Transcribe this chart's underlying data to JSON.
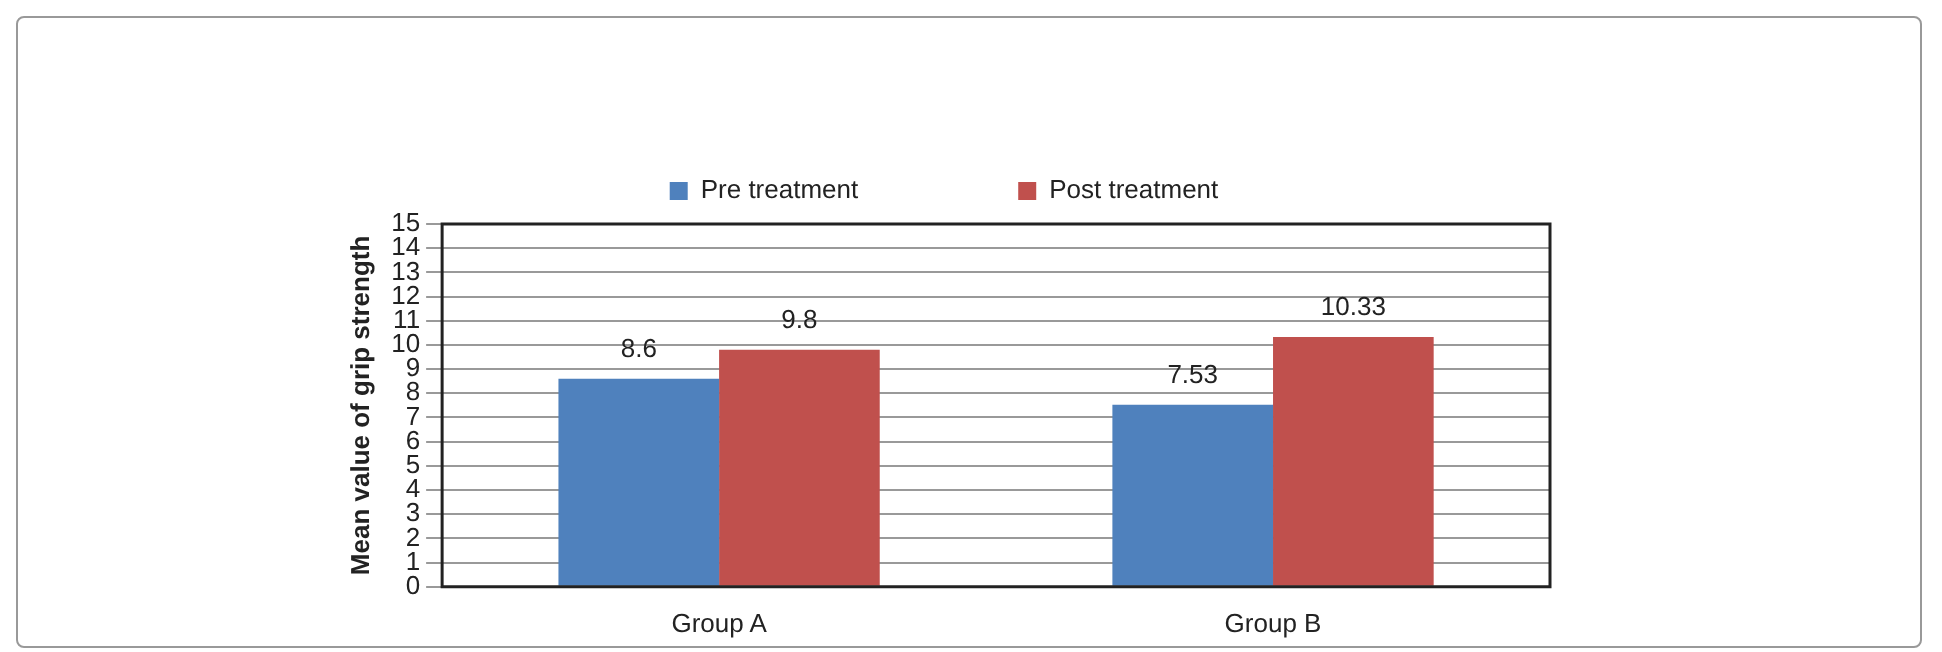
{
  "chart_data": {
    "type": "bar",
    "ylabel": "Mean value of grip strength",
    "categories": [
      "Group A",
      "Group B"
    ],
    "series": [
      {
        "name": "Pre treatment",
        "color": "#4f81bd",
        "values": [
          8.6,
          7.53
        ]
      },
      {
        "name": "Post treatment",
        "color": "#c0504d",
        "values": [
          9.8,
          10.33
        ]
      }
    ],
    "ylim": [
      0,
      15
    ],
    "yticks": [
      0,
      1,
      2,
      3,
      4,
      5,
      6,
      7,
      8,
      9,
      10,
      11,
      12,
      13,
      14,
      15
    ],
    "grid": "y",
    "legend": "top",
    "data_labels": true
  }
}
